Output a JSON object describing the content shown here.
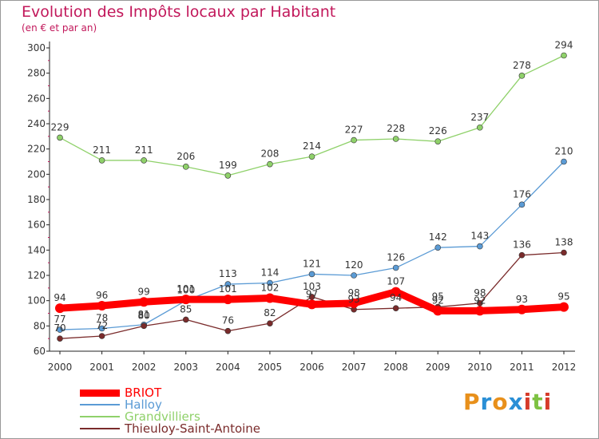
{
  "title": "Evolution des Impôts locaux par Habitant",
  "subtitle": "(en € et par an)",
  "brand": {
    "text": "Proxiti",
    "colors": [
      "#e8901b",
      "#2a8fd6",
      "#e8901b",
      "#2a8fd6",
      "#d63b2a",
      "#7dc242",
      "#d63b2a"
    ]
  },
  "chart_data": {
    "type": "line",
    "title": "Evolution des Impôts locaux par Habitant",
    "subtitle": "(en € et par an)",
    "x": [
      "2000",
      "2001",
      "2002",
      "2003",
      "2004",
      "2005",
      "2006",
      "2007",
      "2008",
      "2009",
      "2010",
      "2011",
      "2012"
    ],
    "ylim": [
      60,
      300
    ],
    "yticks": [
      60,
      80,
      100,
      120,
      140,
      160,
      180,
      200,
      220,
      240,
      260,
      280,
      300
    ],
    "grid": false,
    "legend_position": "bottom-left",
    "series": [
      {
        "name": "BRIOT",
        "color": "#ff0000",
        "values": [
          94,
          96,
          99,
          101,
          101,
          102,
          97,
          98,
          107,
          92,
          92,
          93,
          95
        ],
        "labels": [
          "94",
          "96",
          "99",
          "101",
          "101",
          "102",
          "97",
          "98",
          "107",
          "92",
          "92",
          "93",
          "95"
        ]
      },
      {
        "name": "Halloy",
        "color": "#5b9bd5",
        "values": [
          77,
          78,
          81,
          100,
          113,
          114,
          121,
          120,
          126,
          142,
          143,
          176,
          210
        ],
        "labels": [
          "77",
          "78",
          "81",
          "100",
          "113",
          "114",
          "121",
          "120",
          "126",
          "142",
          "143",
          "176",
          "210"
        ]
      },
      {
        "name": "Grandvilliers",
        "color": "#8fd16a",
        "values": [
          229,
          211,
          211,
          206,
          199,
          208,
          214,
          227,
          228,
          226,
          237,
          278,
          294
        ],
        "labels": [
          "229",
          "211",
          "211",
          "206",
          "199",
          "208",
          "214",
          "227",
          "228",
          "226",
          "237",
          "278",
          "294"
        ]
      },
      {
        "name": "Thieuloy-Saint-Antoine",
        "color": "#7a2b2b",
        "values": [
          70,
          72,
          80,
          85,
          76,
          82,
          103,
          93,
          94,
          95,
          98,
          136,
          138
        ],
        "labels": [
          "70",
          "72",
          "80",
          "85",
          "76",
          "82",
          "103",
          "93",
          "94",
          "95",
          "98",
          "136",
          "138"
        ]
      }
    ]
  }
}
